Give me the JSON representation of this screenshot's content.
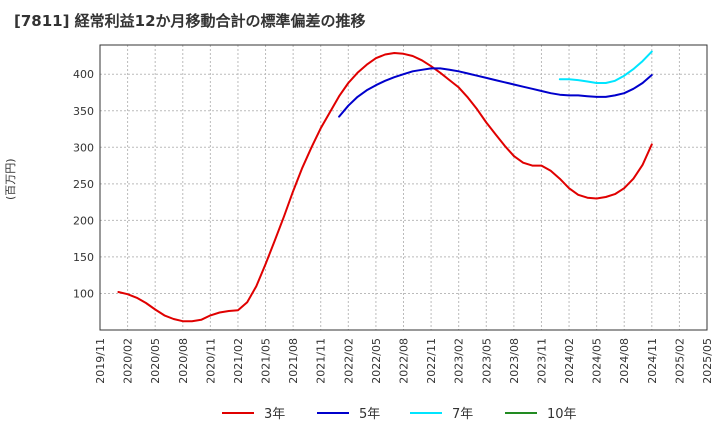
{
  "chart_data": {
    "type": "line",
    "title": "[7811]  経常利益12か月移動合計の標準偏差の推移",
    "ylabel": "(百万円)",
    "xlabel": "",
    "ylim": [
      50,
      440
    ],
    "yticks": [
      100,
      150,
      200,
      250,
      300,
      350,
      400
    ],
    "xlim": [
      "2019-11",
      "2025-05"
    ],
    "xticks": [
      "2019/11",
      "2020/02",
      "2020/05",
      "2020/08",
      "2020/11",
      "2021/02",
      "2021/05",
      "2021/08",
      "2021/11",
      "2022/02",
      "2022/05",
      "2022/08",
      "2022/11",
      "2023/02",
      "2023/05",
      "2023/08",
      "2023/11",
      "2024/02",
      "2024/05",
      "2024/08",
      "2024/11",
      "2025/02",
      "2025/05"
    ],
    "grid": true,
    "legend_position": "bottom",
    "series": [
      {
        "name": "3年",
        "color": "#e00000",
        "points": [
          [
            "2020-01",
            102
          ],
          [
            "2020-02",
            99
          ],
          [
            "2020-03",
            94
          ],
          [
            "2020-04",
            87
          ],
          [
            "2020-05",
            78
          ],
          [
            "2020-06",
            70
          ],
          [
            "2020-07",
            65
          ],
          [
            "2020-08",
            62
          ],
          [
            "2020-09",
            62
          ],
          [
            "2020-10",
            64
          ],
          [
            "2020-11",
            70
          ],
          [
            "2020-12",
            74
          ],
          [
            "2021-01",
            76
          ],
          [
            "2021-02",
            77
          ],
          [
            "2021-03",
            88
          ],
          [
            "2021-04",
            110
          ],
          [
            "2021-05",
            140
          ],
          [
            "2021-06",
            172
          ],
          [
            "2021-07",
            205
          ],
          [
            "2021-08",
            240
          ],
          [
            "2021-09",
            272
          ],
          [
            "2021-10",
            300
          ],
          [
            "2021-11",
            326
          ],
          [
            "2021-12",
            348
          ],
          [
            "2022-01",
            370
          ],
          [
            "2022-02",
            388
          ],
          [
            "2022-03",
            402
          ],
          [
            "2022-04",
            413
          ],
          [
            "2022-05",
            422
          ],
          [
            "2022-06",
            427
          ],
          [
            "2022-07",
            429
          ],
          [
            "2022-08",
            428
          ],
          [
            "2022-09",
            425
          ],
          [
            "2022-10",
            419
          ],
          [
            "2022-11",
            411
          ],
          [
            "2022-12",
            402
          ],
          [
            "2023-01",
            392
          ],
          [
            "2023-02",
            382
          ],
          [
            "2023-03",
            368
          ],
          [
            "2023-04",
            352
          ],
          [
            "2023-05",
            334
          ],
          [
            "2023-06",
            318
          ],
          [
            "2023-07",
            302
          ],
          [
            "2023-08",
            288
          ],
          [
            "2023-09",
            279
          ],
          [
            "2023-10",
            275
          ],
          [
            "2023-11",
            275
          ],
          [
            "2023-12",
            268
          ],
          [
            "2024-01",
            257
          ],
          [
            "2024-02",
            244
          ],
          [
            "2024-03",
            235
          ],
          [
            "2024-04",
            231
          ],
          [
            "2024-05",
            230
          ],
          [
            "2024-06",
            232
          ],
          [
            "2024-07",
            236
          ],
          [
            "2024-08",
            244
          ],
          [
            "2024-09",
            257
          ],
          [
            "2024-10",
            276
          ],
          [
            "2024-11",
            304
          ]
        ]
      },
      {
        "name": "5年",
        "color": "#0000cc",
        "points": [
          [
            "2022-01",
            342
          ],
          [
            "2022-02",
            357
          ],
          [
            "2022-03",
            369
          ],
          [
            "2022-04",
            378
          ],
          [
            "2022-05",
            385
          ],
          [
            "2022-06",
            391
          ],
          [
            "2022-07",
            396
          ],
          [
            "2022-08",
            400
          ],
          [
            "2022-09",
            404
          ],
          [
            "2022-10",
            406
          ],
          [
            "2022-11",
            408
          ],
          [
            "2022-12",
            408
          ],
          [
            "2023-01",
            406
          ],
          [
            "2023-02",
            404
          ],
          [
            "2023-03",
            401
          ],
          [
            "2023-04",
            398
          ],
          [
            "2023-05",
            395
          ],
          [
            "2023-06",
            392
          ],
          [
            "2023-07",
            389
          ],
          [
            "2023-08",
            386
          ],
          [
            "2023-09",
            383
          ],
          [
            "2023-10",
            380
          ],
          [
            "2023-11",
            377
          ],
          [
            "2023-12",
            374
          ],
          [
            "2024-01",
            372
          ],
          [
            "2024-02",
            371
          ],
          [
            "2024-03",
            371
          ],
          [
            "2024-04",
            370
          ],
          [
            "2024-05",
            369
          ],
          [
            "2024-06",
            369
          ],
          [
            "2024-07",
            371
          ],
          [
            "2024-08",
            374
          ],
          [
            "2024-09",
            380
          ],
          [
            "2024-10",
            388
          ],
          [
            "2024-11",
            399
          ]
        ]
      },
      {
        "name": "7年",
        "color": "#00e5ff",
        "points": [
          [
            "2024-01",
            393
          ],
          [
            "2024-02",
            393
          ],
          [
            "2024-03",
            392
          ],
          [
            "2024-04",
            390
          ],
          [
            "2024-05",
            388
          ],
          [
            "2024-06",
            388
          ],
          [
            "2024-07",
            391
          ],
          [
            "2024-08",
            398
          ],
          [
            "2024-09",
            407
          ],
          [
            "2024-10",
            418
          ],
          [
            "2024-11",
            431
          ]
        ]
      },
      {
        "name": "10年",
        "color": "#228b22",
        "points": []
      }
    ]
  }
}
